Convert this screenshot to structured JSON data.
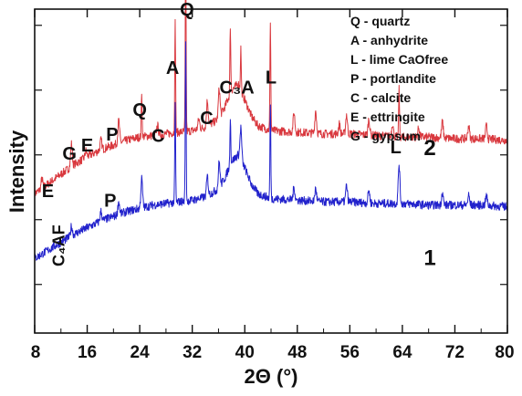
{
  "chart_data": {
    "type": "line",
    "title": "",
    "xlabel": "2Θ (°)",
    "ylabel": "Intensity",
    "xlim": [
      8,
      80
    ],
    "ylim": [
      0,
      100
    ],
    "x_ticks": [
      8,
      16,
      24,
      32,
      40,
      48,
      56,
      64,
      72,
      80
    ],
    "y_ticks_labeled": false,
    "grid": false,
    "legend": {
      "placement": "top-right",
      "entries": [
        "Q - quartz",
        "A - anhydrite",
        "L - lime CaOfree",
        "P - portlandite",
        "C - calcite",
        "E - ettringite",
        "G - gypsum"
      ]
    },
    "series": [
      {
        "name": "2",
        "color": "#d9383e",
        "baseline": [
          [
            8,
            43
          ],
          [
            10,
            46
          ],
          [
            12,
            49
          ],
          [
            14,
            52
          ],
          [
            16,
            54.5
          ],
          [
            18,
            56.5
          ],
          [
            20,
            58
          ],
          [
            22,
            59.5
          ],
          [
            24,
            60.5
          ],
          [
            26,
            61
          ],
          [
            28,
            61.5
          ],
          [
            30,
            62
          ],
          [
            32,
            62.5
          ],
          [
            34,
            63.5
          ],
          [
            36,
            66
          ],
          [
            37,
            70
          ],
          [
            38,
            75
          ],
          [
            39,
            77
          ],
          [
            40,
            72
          ],
          [
            41,
            67
          ],
          [
            42,
            64
          ],
          [
            44,
            62.5
          ],
          [
            48,
            62
          ],
          [
            52,
            61.5
          ],
          [
            56,
            61.5
          ],
          [
            60,
            61
          ],
          [
            64,
            60.5
          ],
          [
            68,
            60.5
          ],
          [
            72,
            60
          ],
          [
            76,
            60
          ],
          [
            80,
            59.5
          ]
        ],
        "peaks": [
          [
            9.1,
            3
          ],
          [
            13.6,
            7
          ],
          [
            15.8,
            2
          ],
          [
            18.1,
            3
          ],
          [
            20.8,
            7
          ],
          [
            24.3,
            14
          ],
          [
            26.7,
            3
          ],
          [
            29.4,
            34
          ],
          [
            31.0,
            57
          ],
          [
            33.0,
            3
          ],
          [
            34.3,
            8
          ],
          [
            36.1,
            9
          ],
          [
            37.8,
            21
          ],
          [
            39.4,
            13
          ],
          [
            43.9,
            34
          ],
          [
            47.5,
            6
          ],
          [
            50.8,
            7
          ],
          [
            54.4,
            3
          ],
          [
            55.5,
            6
          ],
          [
            58.9,
            5
          ],
          [
            62.5,
            4
          ],
          [
            63.5,
            15
          ],
          [
            66.5,
            3
          ],
          [
            70.1,
            5
          ],
          [
            74.1,
            4
          ],
          [
            76.8,
            4
          ]
        ]
      },
      {
        "name": "1",
        "color": "#2222cc",
        "baseline": [
          [
            8,
            23
          ],
          [
            10,
            25.5
          ],
          [
            12,
            28
          ],
          [
            14,
            30.5
          ],
          [
            16,
            32.5
          ],
          [
            18,
            34.5
          ],
          [
            20,
            36
          ],
          [
            22,
            37.5
          ],
          [
            24,
            38.5
          ],
          [
            26,
            39.5
          ],
          [
            28,
            40
          ],
          [
            30,
            40.5
          ],
          [
            32,
            41
          ],
          [
            34,
            42
          ],
          [
            36,
            44.5
          ],
          [
            37,
            48
          ],
          [
            38,
            53
          ],
          [
            39,
            55
          ],
          [
            40,
            51
          ],
          [
            41,
            46
          ],
          [
            42,
            43
          ],
          [
            44,
            41.5
          ],
          [
            48,
            41
          ],
          [
            52,
            40.5
          ],
          [
            56,
            40.5
          ],
          [
            60,
            40
          ],
          [
            64,
            40
          ],
          [
            68,
            39.5
          ],
          [
            72,
            39.5
          ],
          [
            76,
            39.5
          ],
          [
            80,
            39
          ]
        ],
        "peaks": [
          [
            13.6,
            3
          ],
          [
            18.1,
            3
          ],
          [
            20.8,
            4
          ],
          [
            24.3,
            9
          ],
          [
            29.4,
            30
          ],
          [
            31.0,
            50
          ],
          [
            34.3,
            6
          ],
          [
            36.1,
            8
          ],
          [
            37.8,
            15
          ],
          [
            39.4,
            10
          ],
          [
            43.9,
            29
          ],
          [
            47.5,
            4
          ],
          [
            50.8,
            4
          ],
          [
            55.5,
            5
          ],
          [
            58.9,
            4
          ],
          [
            63.5,
            12
          ],
          [
            70.1,
            4
          ],
          [
            74.1,
            3
          ],
          [
            76.8,
            3
          ]
        ]
      }
    ],
    "annotations": [
      {
        "text": "Q",
        "x": 31.2,
        "y": 98
      },
      {
        "text": "A",
        "x": 29.0,
        "y": 80
      },
      {
        "text": "L",
        "x": 44.0,
        "y": 77
      },
      {
        "text": "C₃A",
        "x": 38.8,
        "y": 74
      },
      {
        "text": "Q",
        "x": 24.0,
        "y": 67
      },
      {
        "text": "C",
        "x": 34.2,
        "y": 64.5
      },
      {
        "text": "P",
        "x": 19.8,
        "y": 59.5
      },
      {
        "text": "C",
        "x": 26.8,
        "y": 59
      },
      {
        "text": "G",
        "x": 13.3,
        "y": 53.5
      },
      {
        "text": "E",
        "x": 16.0,
        "y": 56
      },
      {
        "text": "L",
        "x": 63.0,
        "y": 55.5
      },
      {
        "text": "2",
        "x": 68.2,
        "y": 55
      },
      {
        "text": "E",
        "x": 10.0,
        "y": 42
      },
      {
        "text": "C₄AF",
        "x": 12.5,
        "y": 27,
        "rotated": true
      },
      {
        "text": "P",
        "x": 19.5,
        "y": 39
      },
      {
        "text": "1",
        "x": 68.2,
        "y": 21
      }
    ]
  }
}
